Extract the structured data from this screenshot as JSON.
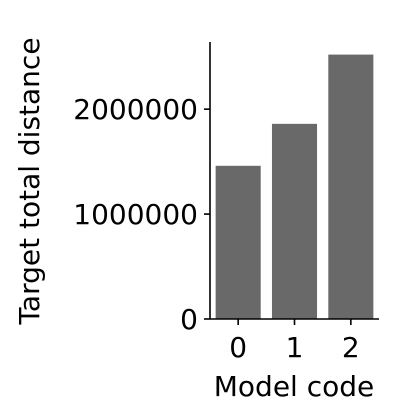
{
  "chart_data": {
    "type": "bar",
    "title": "",
    "xlabel": "Model code",
    "ylabel": "Target total distance",
    "categories": [
      "0",
      "1",
      "2"
    ],
    "values": [
      1460000,
      1860000,
      2520000
    ],
    "ylim": [
      0,
      2640000
    ],
    "yticks": [
      0,
      1000000,
      2000000
    ],
    "ytick_labels": [
      "0",
      "1000000",
      "2000000"
    ],
    "bar_color": "#696969",
    "grid": false,
    "legend": "none"
  }
}
